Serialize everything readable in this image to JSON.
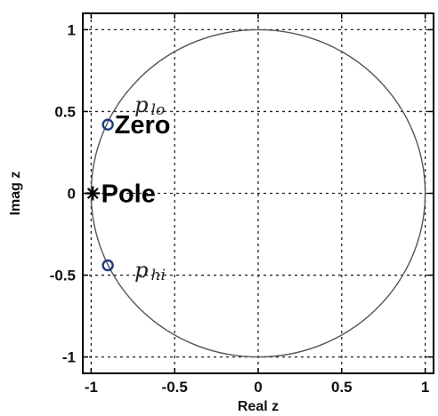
{
  "chart_data": {
    "type": "scatter",
    "title": "",
    "xlabel": "Real z",
    "ylabel": "Imag z",
    "xlim": [
      -1.05,
      1.05
    ],
    "ylim": [
      -1.1,
      1.1
    ],
    "grid": true,
    "grid_style": "dotted",
    "xticks": [
      -1,
      -0.5,
      0,
      0.5,
      1
    ],
    "yticks": [
      -1,
      -0.5,
      0,
      0.5,
      1
    ],
    "xtick_labels": [
      "-1",
      "-0.5",
      "0",
      "0.5",
      "1"
    ],
    "ytick_labels": [
      "-1",
      "-0.5",
      "0",
      "0.5",
      "1"
    ],
    "unit_circle": {
      "center": [
        0,
        0
      ],
      "radius": 1,
      "color": "#555555"
    },
    "series": [
      {
        "marker": "o",
        "color": "#1f3a7a",
        "points": [
          {
            "x": -0.9,
            "y": 0.42
          },
          {
            "x": -0.9,
            "y": -0.44
          }
        ]
      },
      {
        "marker": "*",
        "color": "#000000",
        "points": [
          {
            "x": -0.99,
            "y": 0.0
          }
        ]
      }
    ],
    "annotations": [
      {
        "text": "Zero",
        "x": -0.86,
        "y": 0.42,
        "style": "bold"
      },
      {
        "text": "Pole",
        "x": -0.94,
        "y": 0.0,
        "style": "bold"
      },
      {
        "text": "p",
        "sub": "lo",
        "x": -0.74,
        "y": 0.54,
        "style": "script"
      },
      {
        "text": "p",
        "sub": "hi",
        "x": -0.74,
        "y": -0.47,
        "style": "script"
      }
    ]
  }
}
